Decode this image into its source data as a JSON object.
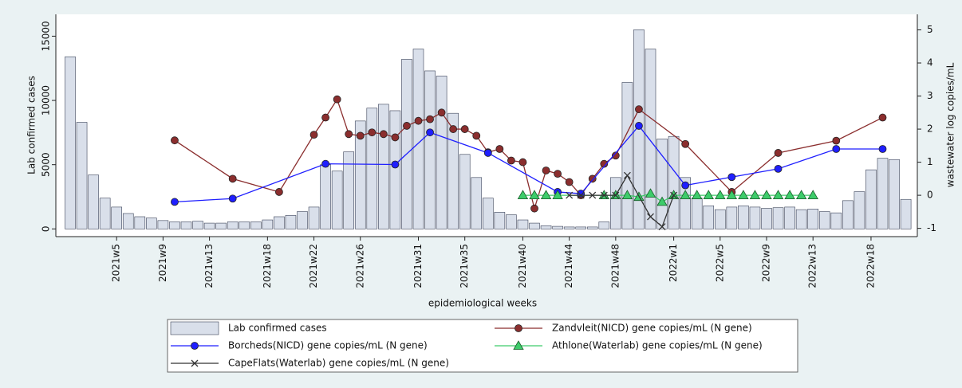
{
  "chart_data": {
    "type": "combo",
    "xlabel": "epidemiological weeks",
    "ylabel": "Lab confirmed cases",
    "y2label": "wastewater log copies/mL",
    "categories": [
      null,
      null,
      null,
      null,
      "2021w5",
      null,
      null,
      null,
      "2021w9",
      null,
      null,
      null,
      "2021w13",
      null,
      null,
      null,
      null,
      "2021w18",
      null,
      null,
      null,
      "2021w22",
      null,
      null,
      null,
      "2021w26",
      null,
      null,
      null,
      null,
      "2021w31",
      null,
      null,
      null,
      "2021w35",
      null,
      null,
      null,
      null,
      "2021w40",
      null,
      null,
      null,
      "2021w44",
      null,
      null,
      null,
      "2021w48",
      null,
      null,
      null,
      null,
      "2022w1",
      null,
      null,
      null,
      "2022w5",
      null,
      null,
      null,
      "2022w9",
      null,
      null,
      null,
      "2022w13",
      null,
      null,
      null,
      null,
      "2022w18",
      null,
      null,
      null
    ],
    "ylim": [
      -600,
      16700
    ],
    "yticks": [
      0,
      5000,
      10000,
      15000
    ],
    "y2lim": [
      -1.25,
      5.47
    ],
    "y2ticks": [
      -1,
      0,
      1,
      2,
      3,
      4,
      5
    ],
    "series": [
      {
        "name": "Lab confirmed cases",
        "type": "bar",
        "color": "#d9dfea",
        "values": [
          13400,
          8300,
          4200,
          2400,
          1700,
          1200,
          950,
          850,
          650,
          550,
          550,
          600,
          450,
          450,
          550,
          550,
          550,
          700,
          950,
          1050,
          1350,
          1700,
          5000,
          4500,
          6000,
          8400,
          9400,
          9700,
          9200,
          13200,
          14000,
          12300,
          11900,
          9000,
          5800,
          4000,
          2400,
          1300,
          1100,
          700,
          450,
          250,
          200,
          150,
          150,
          150,
          550,
          4000,
          11400,
          15500,
          14000,
          7000,
          7200,
          4000,
          2400,
          1800,
          1500,
          1700,
          1800,
          1700,
          1600,
          1650,
          1700,
          1500,
          1550,
          1350,
          1250,
          2200,
          2900,
          4600,
          5500,
          5400,
          2300
        ]
      },
      {
        "name": "Zandvleit(NICD) gene copies/mL (N gene)",
        "type": "line",
        "axis": "y2",
        "marker": "circle",
        "color": "#8b2e2e",
        "values": [
          null,
          null,
          null,
          null,
          null,
          null,
          null,
          null,
          null,
          1.66,
          null,
          null,
          null,
          null,
          0.5,
          null,
          null,
          null,
          0.1,
          null,
          null,
          1.83,
          2.35,
          2.9,
          1.85,
          1.8,
          1.9,
          1.85,
          1.75,
          2.1,
          2.25,
          2.3,
          2.5,
          2.0,
          2.0,
          1.8,
          1.3,
          1.4,
          1.05,
          1.0,
          -0.4,
          0.75,
          0.65,
          0.4,
          0.0,
          0.5,
          0.95,
          1.2,
          null,
          2.6,
          null,
          null,
          null,
          1.55,
          null,
          null,
          null,
          0.1,
          null,
          null,
          null,
          1.28,
          null,
          null,
          null,
          null,
          1.65,
          null,
          null,
          null,
          2.35,
          null,
          null
        ]
      },
      {
        "name": "Borcheds(NICD) gene copies/mL (N gene)",
        "type": "line",
        "axis": "y2",
        "marker": "circle",
        "color": "#1f1fff",
        "values": [
          null,
          null,
          null,
          null,
          null,
          null,
          null,
          null,
          null,
          -0.2,
          null,
          null,
          null,
          null,
          -0.1,
          null,
          null,
          null,
          null,
          null,
          null,
          null,
          0.95,
          null,
          null,
          null,
          null,
          null,
          0.93,
          null,
          null,
          1.9,
          null,
          null,
          null,
          null,
          1.28,
          null,
          null,
          null,
          null,
          null,
          0.1,
          null,
          0.05,
          null,
          null,
          null,
          null,
          2.1,
          null,
          null,
          null,
          0.3,
          null,
          null,
          null,
          0.55,
          null,
          null,
          null,
          0.8,
          null,
          null,
          null,
          null,
          1.4,
          null,
          null,
          null,
          1.4,
          null,
          null
        ]
      },
      {
        "name": "Athlone(Waterlab) gene copies/mL (N gene)",
        "type": "line",
        "axis": "y2",
        "marker": "triangle",
        "color": "#3dcc6a",
        "values": [
          null,
          null,
          null,
          null,
          null,
          null,
          null,
          null,
          null,
          null,
          null,
          null,
          null,
          null,
          null,
          null,
          null,
          null,
          null,
          null,
          null,
          null,
          null,
          null,
          null,
          null,
          null,
          null,
          null,
          null,
          null,
          null,
          null,
          null,
          null,
          null,
          null,
          null,
          null,
          0,
          0,
          0,
          0,
          null,
          null,
          null,
          0,
          0,
          0,
          -0.05,
          0.05,
          -0.2,
          0,
          0,
          0,
          0,
          0,
          0,
          0,
          0,
          0,
          0,
          0,
          0,
          0,
          null,
          null,
          null,
          null,
          null,
          null,
          null,
          null
        ]
      },
      {
        "name": "CapeFlats(Waterlab) gene copies/mL (N gene)",
        "type": "line",
        "axis": "y2",
        "marker": "x",
        "color": "#333333",
        "values": [
          null,
          null,
          null,
          null,
          null,
          null,
          null,
          null,
          null,
          null,
          null,
          null,
          null,
          null,
          null,
          null,
          null,
          null,
          null,
          null,
          null,
          null,
          null,
          null,
          null,
          null,
          null,
          null,
          null,
          null,
          null,
          null,
          null,
          null,
          null,
          null,
          null,
          null,
          null,
          null,
          null,
          null,
          null,
          0,
          0,
          0,
          0,
          0,
          0.6,
          null,
          -0.65,
          -0.95,
          0,
          null,
          null,
          null,
          null,
          null,
          null,
          null,
          null,
          null,
          null,
          null,
          null,
          null,
          null,
          null,
          null,
          null,
          null,
          null,
          null
        ]
      }
    ]
  }
}
